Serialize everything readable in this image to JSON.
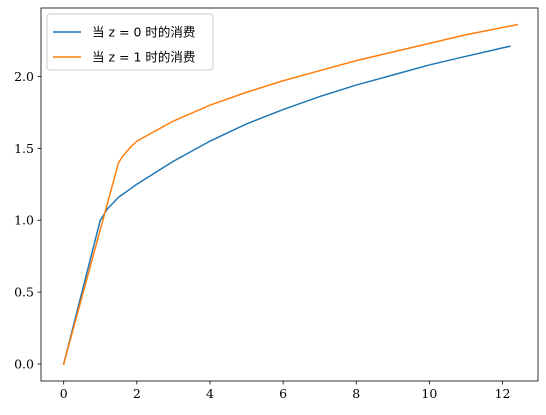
{
  "chart_data": {
    "type": "line",
    "title": "",
    "xlabel": "",
    "ylabel": "",
    "xlim": [
      -0.62,
      12.97
    ],
    "ylim": [
      -0.118,
      2.476
    ],
    "x_ticks": [
      0,
      2,
      4,
      6,
      8,
      10,
      12
    ],
    "y_ticks": [
      0.0,
      0.5,
      1.0,
      1.5,
      2.0
    ],
    "x_tick_labels": [
      "0",
      "2",
      "4",
      "6",
      "8",
      "10",
      "12"
    ],
    "y_tick_labels": [
      "0.0",
      "0.5",
      "1.0",
      "1.5",
      "2.0"
    ],
    "grid": false,
    "legend_position": "top-left",
    "series": [
      {
        "name": "当 z = 0 时的消费",
        "color": "#1f77b4",
        "x": [
          0,
          1.0,
          1.2,
          1.5,
          2,
          3,
          4,
          5,
          6,
          7,
          8,
          9,
          10,
          11,
          12.2
        ],
        "y": [
          0,
          1.0,
          1.08,
          1.16,
          1.25,
          1.41,
          1.55,
          1.67,
          1.77,
          1.86,
          1.94,
          2.01,
          2.08,
          2.14,
          2.21
        ]
      },
      {
        "name": "当 z = 1 时的消费",
        "color": "#ff7f0e",
        "x": [
          0,
          1.5,
          1.6,
          1.8,
          2,
          3,
          4,
          5,
          6,
          7,
          8,
          9,
          10,
          11,
          12.4
        ],
        "y": [
          0,
          1.4,
          1.44,
          1.5,
          1.55,
          1.69,
          1.8,
          1.89,
          1.97,
          2.04,
          2.11,
          2.17,
          2.23,
          2.29,
          2.36
        ]
      }
    ]
  }
}
